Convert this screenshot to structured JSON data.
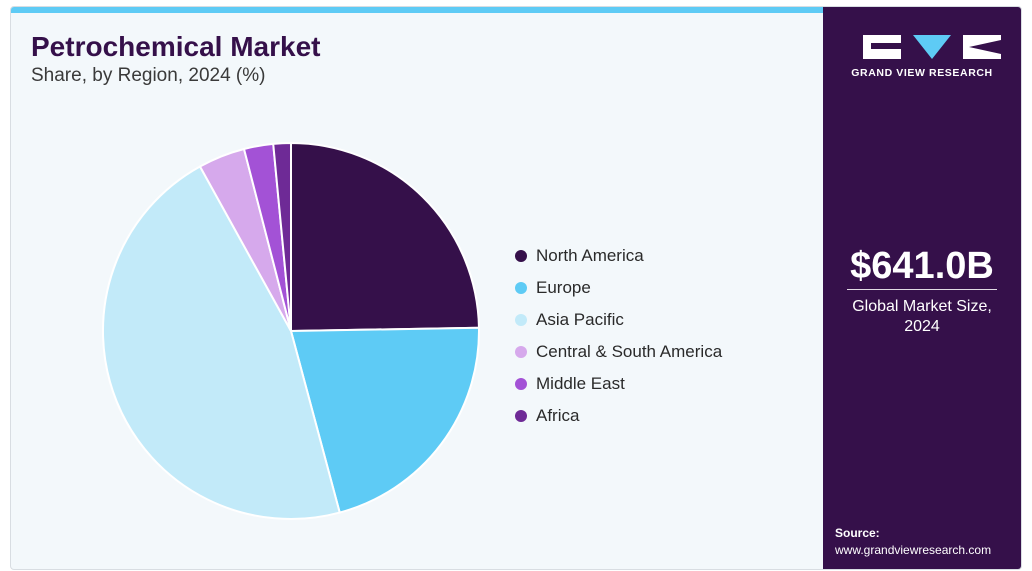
{
  "header": {
    "title": "Petrochemical Market",
    "subtitle": "Share, by Region, 2024 (%)"
  },
  "brand": {
    "name": "GRAND VIEW RESEARCH",
    "accent_color": "#5ecbf5",
    "panel_color": "#35104a"
  },
  "summary": {
    "value": "$641.0B",
    "label": "Global Market Size, 2024"
  },
  "source": {
    "label": "Source:",
    "url": "www.grandviewresearch.com"
  },
  "chart_data": {
    "type": "pie",
    "title": "Petrochemical Market",
    "subtitle": "Share, by Region, 2024 (%)",
    "legend_position": "right",
    "categories": [
      "North America",
      "Europe",
      "Asia Pacific",
      "Central & South America",
      "Middle East",
      "Africa"
    ],
    "values": [
      24.6,
      21.0,
      45.9,
      4.0,
      2.5,
      1.5
    ],
    "colors": [
      "#35104a",
      "#5ecbf5",
      "#c2eaf9",
      "#d6a9ec",
      "#a352d6",
      "#6e2a96"
    ]
  }
}
